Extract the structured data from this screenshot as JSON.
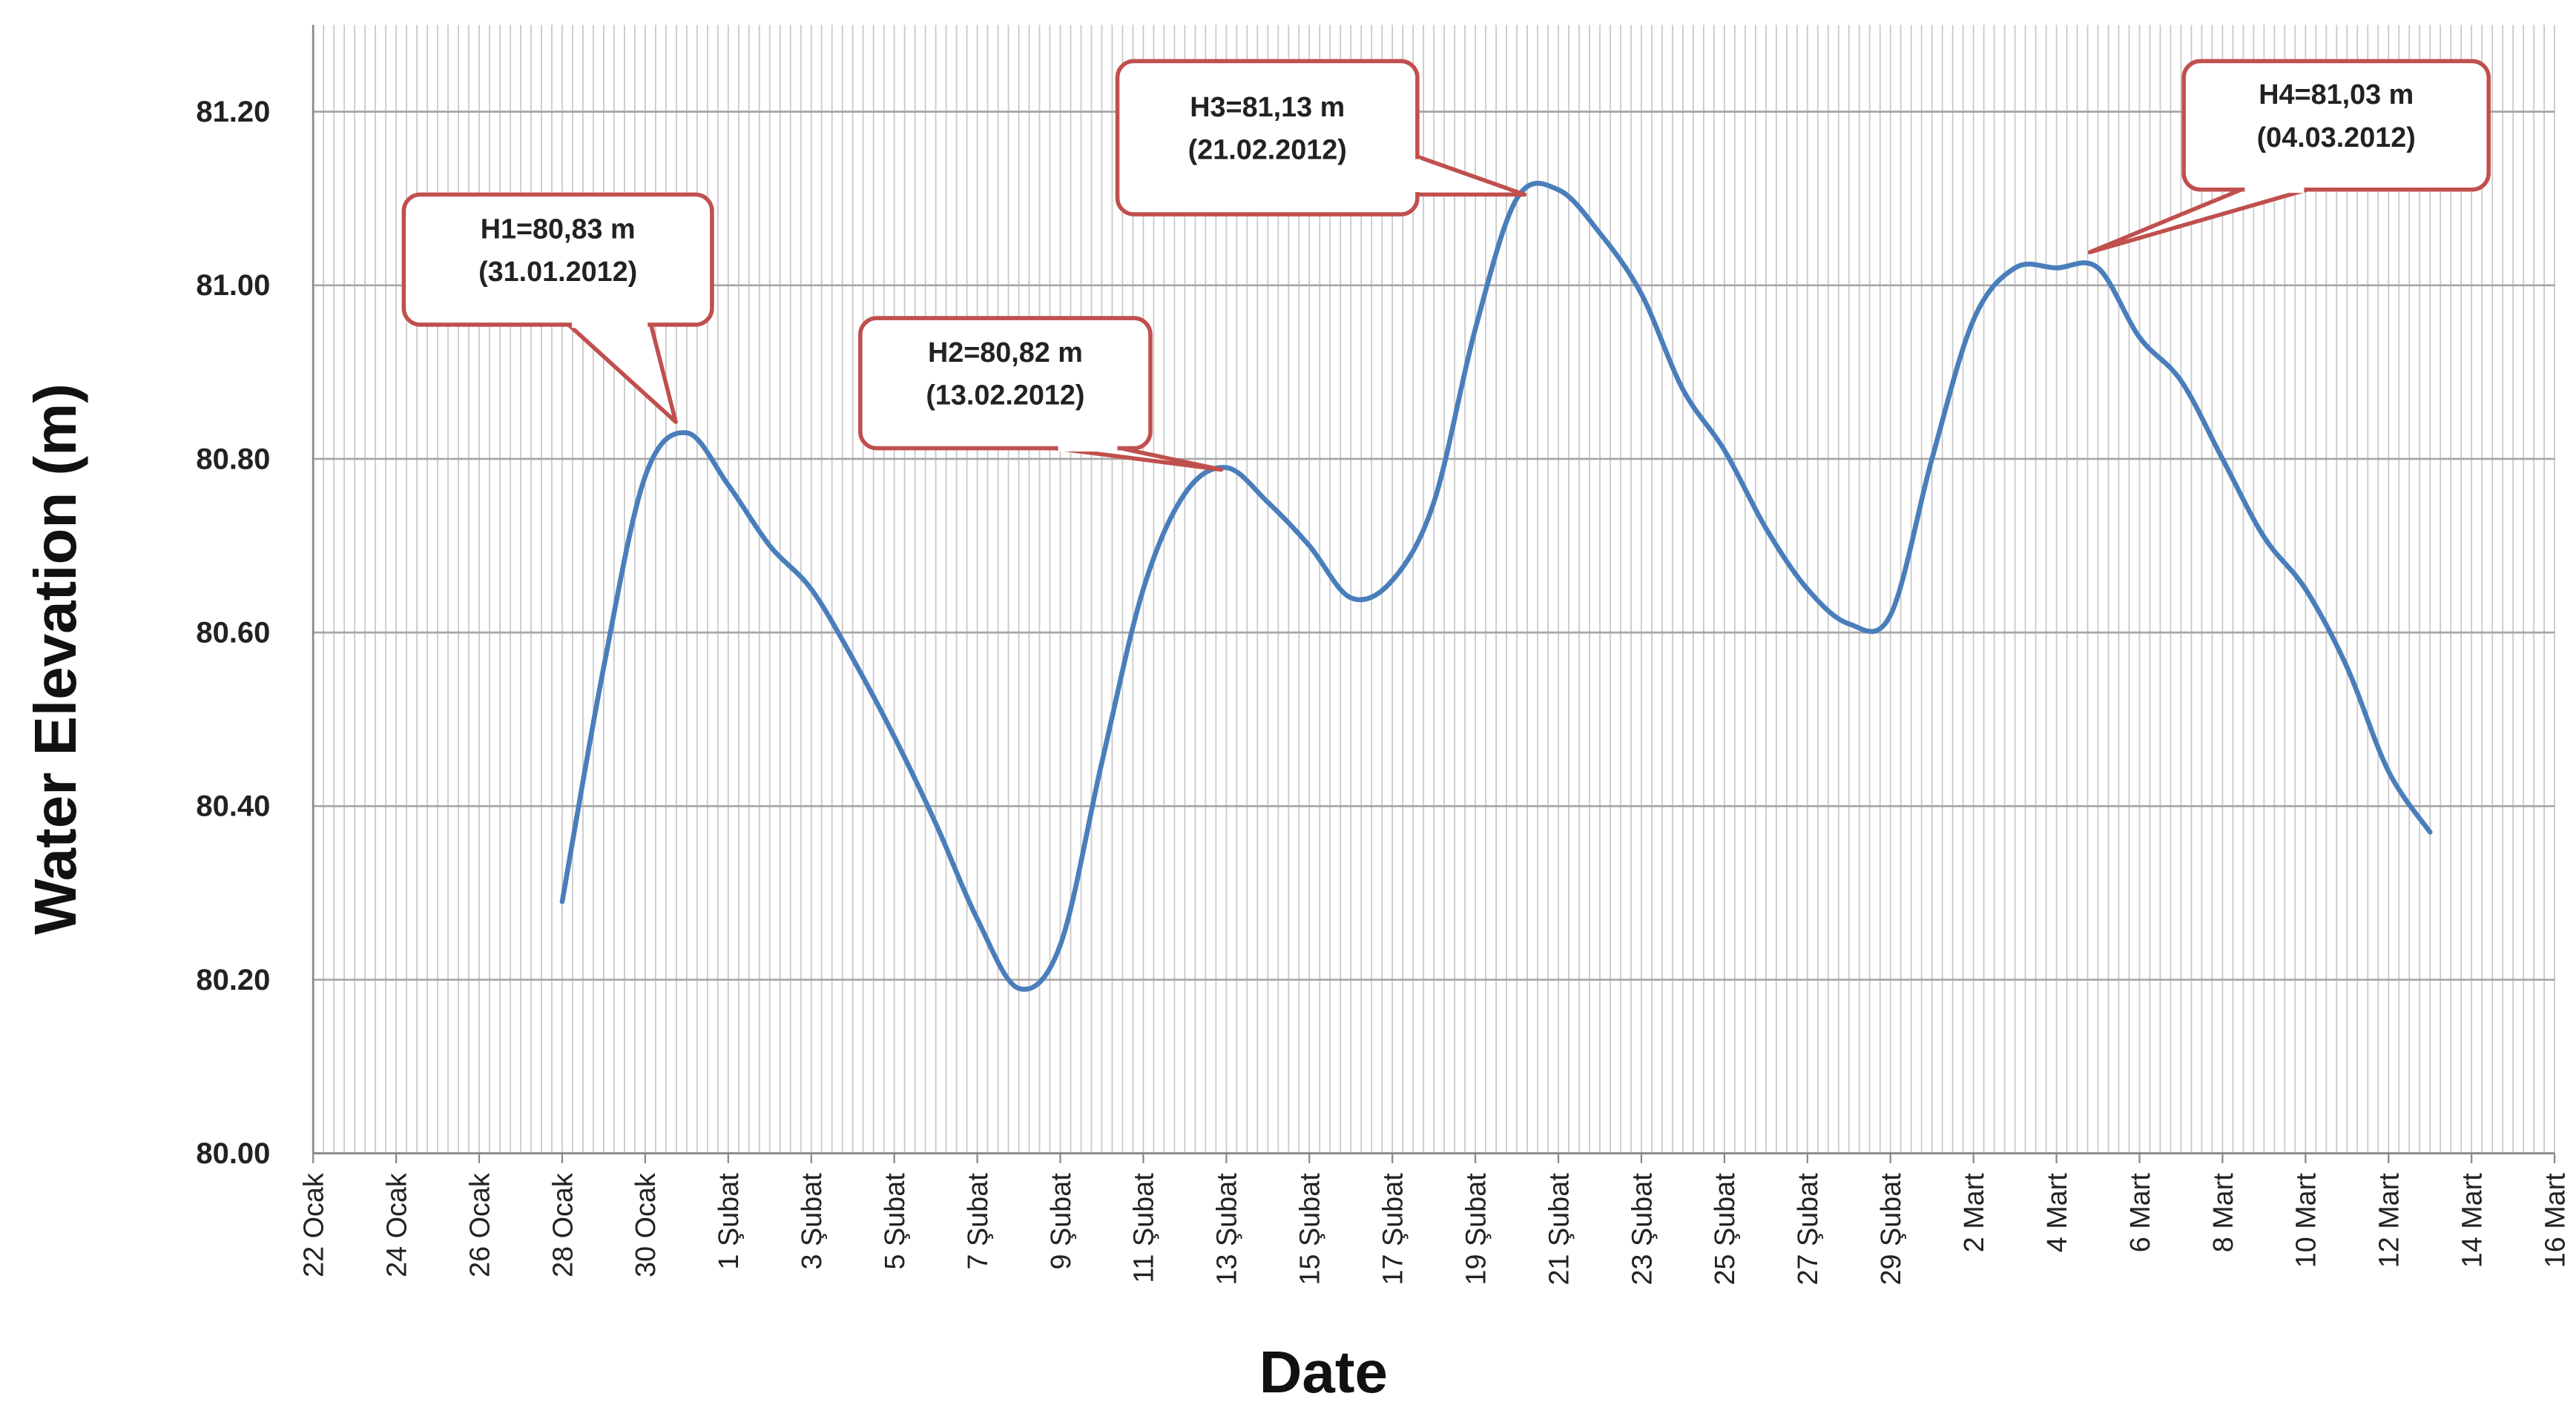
{
  "chart_data": {
    "type": "line",
    "x_label": "Date",
    "y_label": "Water Elevation (m)",
    "categories": [
      "22 Ocak",
      null,
      "24 Ocak",
      null,
      "26 Ocak",
      null,
      "28 Ocak",
      null,
      "30 Ocak",
      null,
      "1 Şubat",
      null,
      "3 Şubat",
      null,
      "5 Şubat",
      null,
      "7 Şubat",
      null,
      "9 Şubat",
      null,
      "11 Şubat",
      null,
      "13 Şubat",
      null,
      "15 Şubat",
      null,
      "17 Şubat",
      null,
      "19 Şubat",
      null,
      "21 Şubat",
      null,
      "23 Şubat",
      null,
      "25 Şubat",
      null,
      "27 Şubat",
      null,
      "29 Şubat",
      null,
      "2 Mart",
      null,
      "4 Mart",
      null,
      "6 Mart",
      null,
      "8 Mart",
      null,
      "10 Mart",
      null,
      "12 Mart",
      null,
      "14 Mart",
      null,
      "16 Mart"
    ],
    "series": [
      {
        "color": "#4a7ebb",
        "values": [
          null,
          null,
          null,
          null,
          null,
          null,
          80.29,
          80.56,
          80.78,
          80.83,
          80.77,
          80.7,
          80.65,
          80.57,
          80.48,
          80.38,
          80.27,
          80.19,
          80.24,
          80.45,
          80.65,
          80.76,
          80.79,
          80.75,
          80.7,
          80.64,
          80.66,
          80.75,
          80.95,
          81.1,
          81.11,
          81.06,
          80.99,
          80.88,
          80.81,
          80.72,
          80.65,
          80.61,
          80.62,
          80.8,
          80.96,
          81.02,
          81.02,
          81.02,
          80.94,
          80.89,
          80.8,
          80.71,
          80.65,
          80.56,
          80.44,
          80.37,
          null,
          null,
          null
        ]
      }
    ],
    "ylim": [
      80,
      81.3
    ],
    "yticks": [
      {
        "value": 80,
        "label": "80.00"
      },
      {
        "value": 80.2,
        "label": "80.20"
      },
      {
        "value": 80.4,
        "label": "80.40"
      },
      {
        "value": 80.6,
        "label": "80.60"
      },
      {
        "value": 80.8,
        "label": "80.80"
      },
      {
        "value": 81,
        "label": "81.00"
      },
      {
        "value": 81.2,
        "label": "81.20"
      }
    ],
    "grid": true,
    "annotations": [
      {
        "lines": [
          "H1=80,83 m",
          "(31.01.2012)"
        ]
      },
      {
        "lines": [
          "H2=80,82 m",
          "(13.02.2012)"
        ]
      },
      {
        "lines": [
          "H3=81,13 m",
          "(21.02.2012)"
        ]
      },
      {
        "lines": [
          "H4=81,03 m",
          "(04.03.2012)"
        ]
      }
    ]
  }
}
